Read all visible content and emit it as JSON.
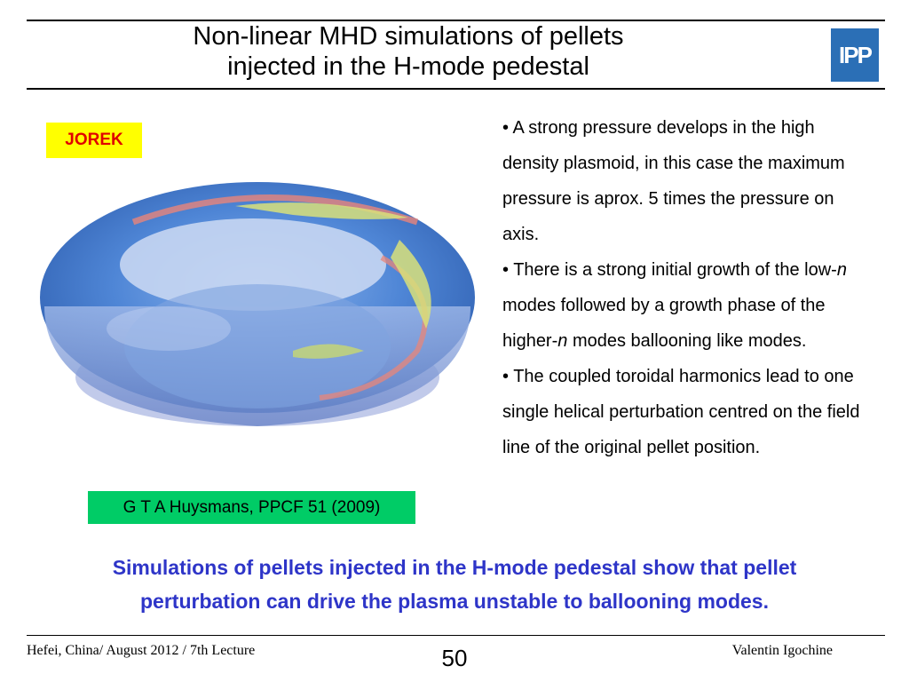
{
  "header": {
    "title_line1": "Non-linear MHD simulations of pellets",
    "title_line2": "injected in the H-mode pedestal",
    "logo_text": "IPP"
  },
  "figure": {
    "badge": "JOREK",
    "reference": "G T A Huysmans, PPCF 51 (2009)"
  },
  "bullets": {
    "b1": "• A strong pressure develops in the high density plasmoid, in this case the maximum pressure is aprox. 5 times the pressure on axis.",
    "b2_pre": "• There is a strong initial growth of the low-",
    "b2_n1": "n",
    "b2_mid": " modes followed by a growth phase of the higher-",
    "b2_n2": "n",
    "b2_post": " modes ballooning like modes.",
    "b3": "• The coupled toroidal harmonics lead to one single helical perturbation centred on the field line of the original pellet position."
  },
  "conclusion": {
    "line1": "Simulations of pellets injected in the H-mode pedestal show that pellet",
    "line2": "perturbation can drive the plasma unstable to ballooning modes."
  },
  "footer": {
    "left": "Hefei, China/ August 2012 / 7th Lecture",
    "page": "50",
    "right": "Valentin Igochine"
  },
  "colors": {
    "logo_bg": "#2b6fb6",
    "badge_bg": "#ffff00",
    "badge_text": "#e00000",
    "reference_bg": "#00cc66",
    "conclusion_text": "#2e35c8"
  }
}
